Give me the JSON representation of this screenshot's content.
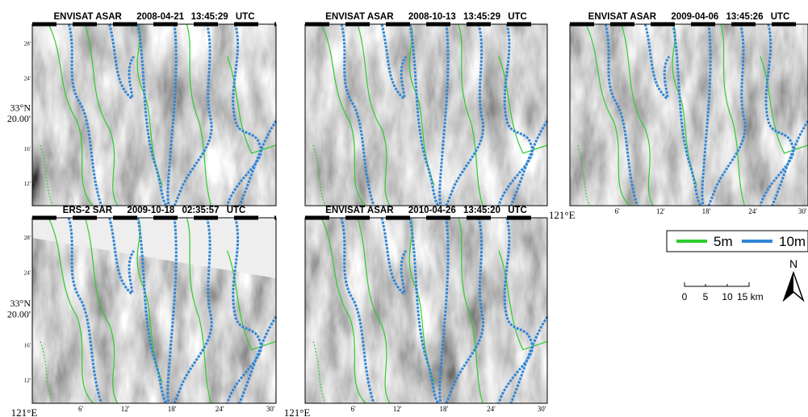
{
  "panels": [
    {
      "sensor": "ENVISAT ASAR",
      "date": "2008-04-21",
      "time": "13:45:29",
      "zone": "UTC"
    },
    {
      "sensor": "ENVISAT ASAR",
      "date": "2008-10-13",
      "time": "13:45:29",
      "zone": "UTC"
    },
    {
      "sensor": "ENVISAT ASAR",
      "date": "2009-04-06",
      "time": "13:45:26",
      "zone": "UTC"
    },
    {
      "sensor": "ERS-2 SAR",
      "date": "2009-10-18",
      "time": "02:35:57",
      "zone": "UTC"
    },
    {
      "sensor": "ENVISAT ASAR",
      "date": "2010-04-26",
      "time": "13:45:20",
      "zone": "UTC"
    }
  ],
  "y_axis_labels": [
    "28'",
    "24'",
    "33°N",
    "20.00'",
    "16'",
    "12'"
  ],
  "x_axis_labels": [
    "121°E",
    "6'",
    "12'",
    "18'",
    "24'",
    "30'"
  ],
  "legend": [
    {
      "label": "5m",
      "color": "#2ecc2e"
    },
    {
      "label": "10m",
      "color": "#2f86d6"
    }
  ],
  "scale_labels": [
    "0",
    "5",
    "10",
    "15 km"
  ],
  "north": "N"
}
